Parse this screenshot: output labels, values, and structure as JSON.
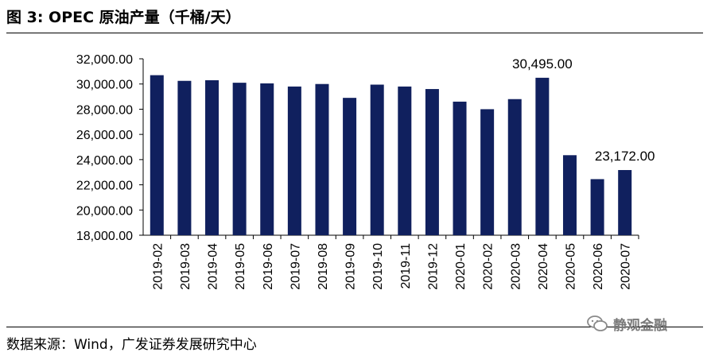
{
  "figure": {
    "title": "图 3:  OPEC 原油产量（千桶/天）",
    "source": "数据来源：Wind，广发证券发展研究中心",
    "watermark": "静观金融"
  },
  "colors": {
    "bar": "#10205e",
    "axis": "#000000"
  },
  "chart_data": {
    "type": "bar",
    "title": "OPEC 原油产量（千桶/天）",
    "xlabel": "",
    "ylabel": "",
    "categories": [
      "2019-02",
      "2019-03",
      "2019-04",
      "2019-05",
      "2019-06",
      "2019-07",
      "2019-08",
      "2019-09",
      "2019-10",
      "2019-11",
      "2019-12",
      "2020-01",
      "2020-02",
      "2020-03",
      "2020-04",
      "2020-05",
      "2020-06",
      "2020-07"
    ],
    "series": [
      {
        "values": [
          30700,
          30250,
          30300,
          30100,
          30050,
          29800,
          30000,
          28900,
          29950,
          29800,
          29600,
          28600,
          28000,
          28800,
          30495,
          24350,
          22450,
          23172
        ]
      }
    ],
    "ylim": [
      18000,
      32000
    ],
    "yticks": [
      18000,
      20000,
      22000,
      24000,
      26000,
      28000,
      30000,
      32000
    ],
    "ytick_labels": [
      "18,000.00",
      "20,000.00",
      "22,000.00",
      "24,000.00",
      "26,000.00",
      "28,000.00",
      "30,000.00",
      "32,000.00"
    ],
    "annotations": [
      {
        "category": "2020-04",
        "text": "30,495.00"
      },
      {
        "category": "2020-07",
        "text": "23,172.00"
      }
    ],
    "grid": false,
    "legend": "none"
  }
}
